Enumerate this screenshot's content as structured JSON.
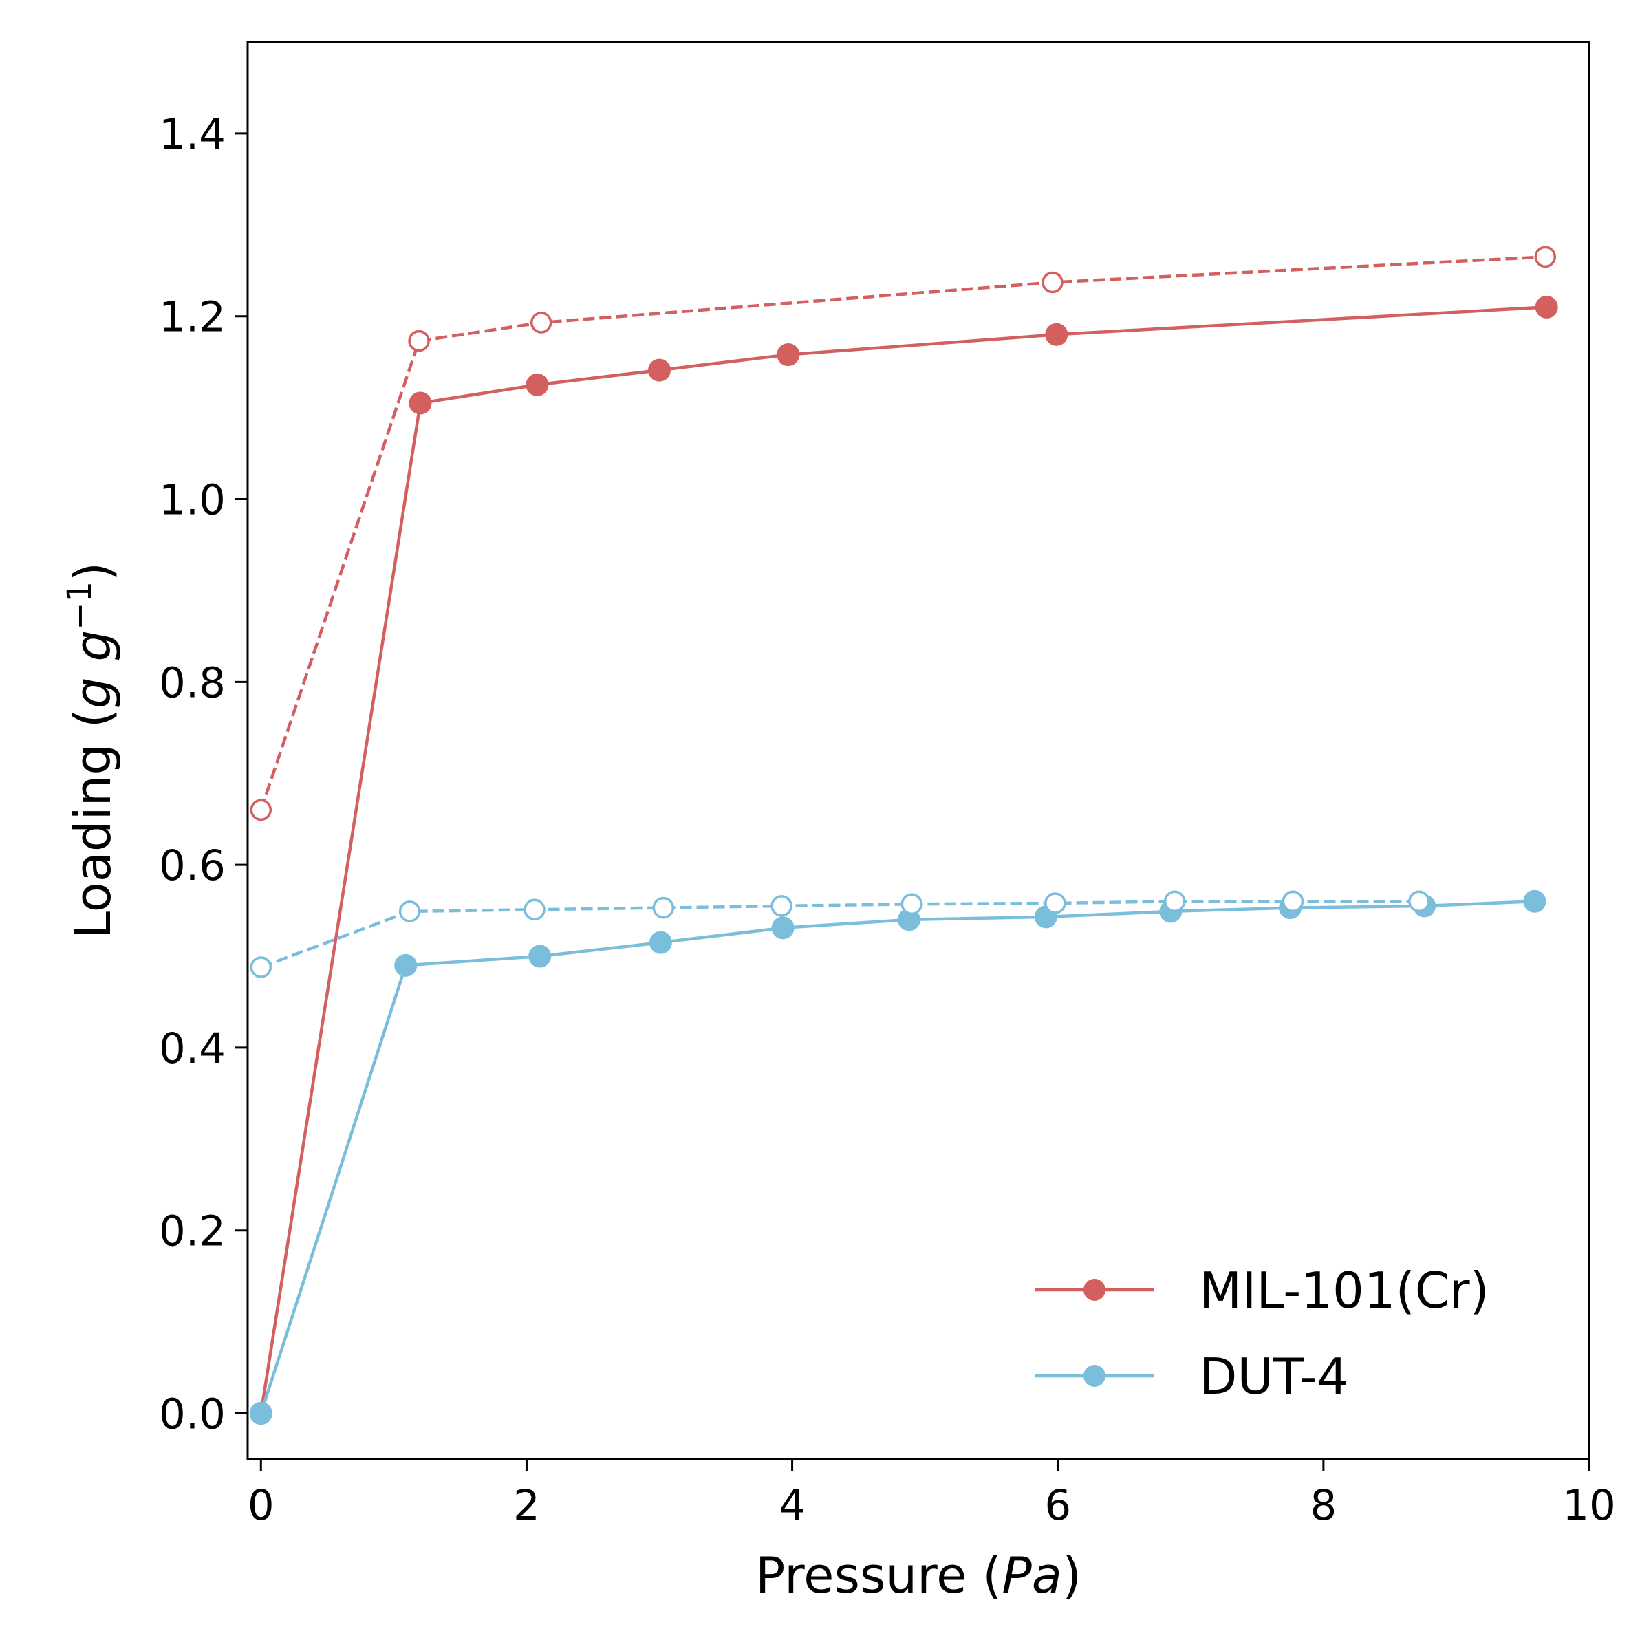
{
  "chart_data": {
    "type": "line",
    "title": "",
    "xlabel_main": "Pressure (",
    "xlabel_unit": "Pa",
    "xlabel_close": ")",
    "ylabel_main": "Loading (",
    "ylabel_unit": "g g",
    "ylabel_exp": "−1",
    "ylabel_close": ")",
    "xlim": [
      -0.1,
      10.0
    ],
    "ylim": [
      -0.05,
      1.5
    ],
    "xticks": [
      0,
      2,
      4,
      6,
      8,
      10
    ],
    "xtick_labels": [
      "0",
      "2",
      "4",
      "6",
      "8",
      "10"
    ],
    "yticks": [
      0.0,
      0.2,
      0.4,
      0.6,
      0.8,
      1.0,
      1.2,
      1.4
    ],
    "ytick_labels": [
      "0.0",
      "0.2",
      "0.4",
      "0.6",
      "0.8",
      "1.0",
      "1.2",
      "1.4"
    ],
    "grid": false,
    "legend_position": "lower-right",
    "series": [
      {
        "name": "MIL-101(Cr)",
        "role": "adsorption",
        "color": "#d45f5f",
        "line": "solid",
        "marker": "filled-circle",
        "show_in_legend": true,
        "x": [
          0.0,
          1.2,
          2.08,
          3.0,
          3.97,
          5.99,
          9.68
        ],
        "y": [
          0.0,
          1.105,
          1.125,
          1.141,
          1.158,
          1.18,
          1.21
        ]
      },
      {
        "name": "MIL-101(Cr)",
        "role": "desorption",
        "color": "#d45f5f",
        "line": "dashed",
        "marker": "open-circle",
        "show_in_legend": false,
        "x": [
          0.0,
          1.19,
          2.11,
          5.96,
          9.67
        ],
        "y": [
          0.66,
          1.173,
          1.193,
          1.237,
          1.265
        ]
      },
      {
        "name": "DUT-4",
        "role": "adsorption",
        "color": "#7bbedc",
        "line": "solid",
        "marker": "filled-circle",
        "show_in_legend": true,
        "x": [
          0.0,
          1.09,
          2.1,
          3.01,
          3.93,
          4.88,
          5.91,
          6.85,
          7.75,
          8.76,
          9.59
        ],
        "y": [
          0.0,
          0.49,
          0.5,
          0.515,
          0.531,
          0.54,
          0.543,
          0.549,
          0.553,
          0.555,
          0.56
        ]
      },
      {
        "name": "DUT-4",
        "role": "desorption",
        "color": "#7bbedc",
        "line": "dashed",
        "marker": "open-circle",
        "show_in_legend": false,
        "x": [
          0.0,
          1.12,
          2.06,
          3.03,
          3.92,
          4.9,
          5.98,
          6.88,
          7.77,
          8.72
        ],
        "y": [
          0.488,
          0.549,
          0.551,
          0.553,
          0.555,
          0.557,
          0.558,
          0.56,
          0.56,
          0.56
        ]
      }
    ],
    "legend": [
      {
        "label": "MIL-101(Cr)",
        "color": "#d45f5f"
      },
      {
        "label": "DUT-4",
        "color": "#7bbedc"
      }
    ]
  }
}
